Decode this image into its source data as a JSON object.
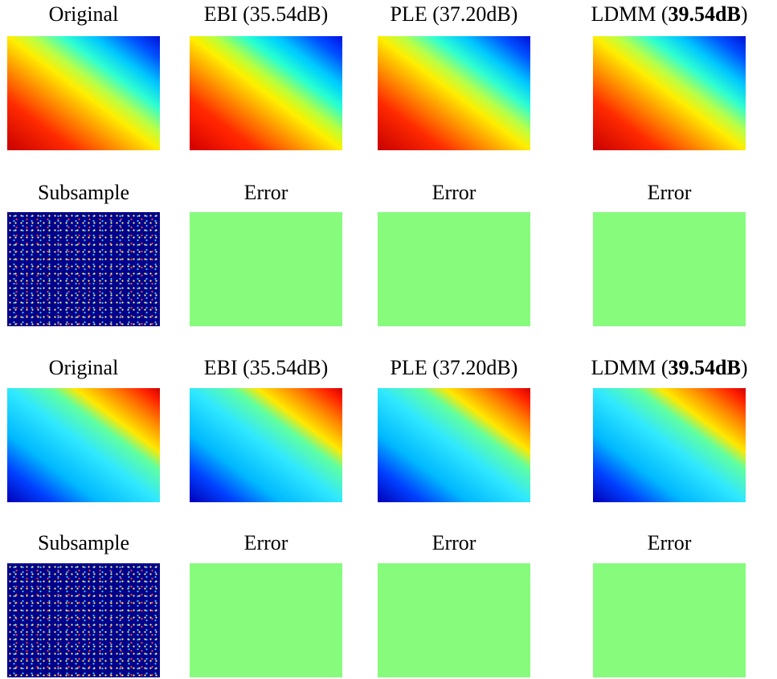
{
  "rows": [
    {
      "labels": [
        {
          "parts": [
            "Original"
          ]
        },
        {
          "parts": [
            "EBI (35.54dB)"
          ]
        },
        {
          "parts": [
            "PLE (37.20dB)"
          ]
        },
        {
          "parts": [
            "LDMM (",
            "39.54dB",
            ")"
          ]
        }
      ]
    },
    {
      "labels": [
        {
          "parts": [
            "Subsample"
          ]
        },
        {
          "parts": [
            "Error"
          ]
        },
        {
          "parts": [
            "Error"
          ]
        },
        {
          "parts": [
            "Error"
          ]
        }
      ]
    },
    {
      "labels": [
        {
          "parts": [
            "Original"
          ]
        },
        {
          "parts": [
            "EBI (35.54dB)"
          ]
        },
        {
          "parts": [
            "PLE (37.20dB)"
          ]
        },
        {
          "parts": [
            "LDMM (",
            "39.54dB",
            ")"
          ]
        }
      ]
    },
    {
      "labels": [
        {
          "parts": [
            "Subsample"
          ]
        },
        {
          "parts": [
            "Error"
          ]
        },
        {
          "parts": [
            "Error"
          ]
        },
        {
          "parts": [
            "Error"
          ]
        }
      ]
    }
  ]
}
